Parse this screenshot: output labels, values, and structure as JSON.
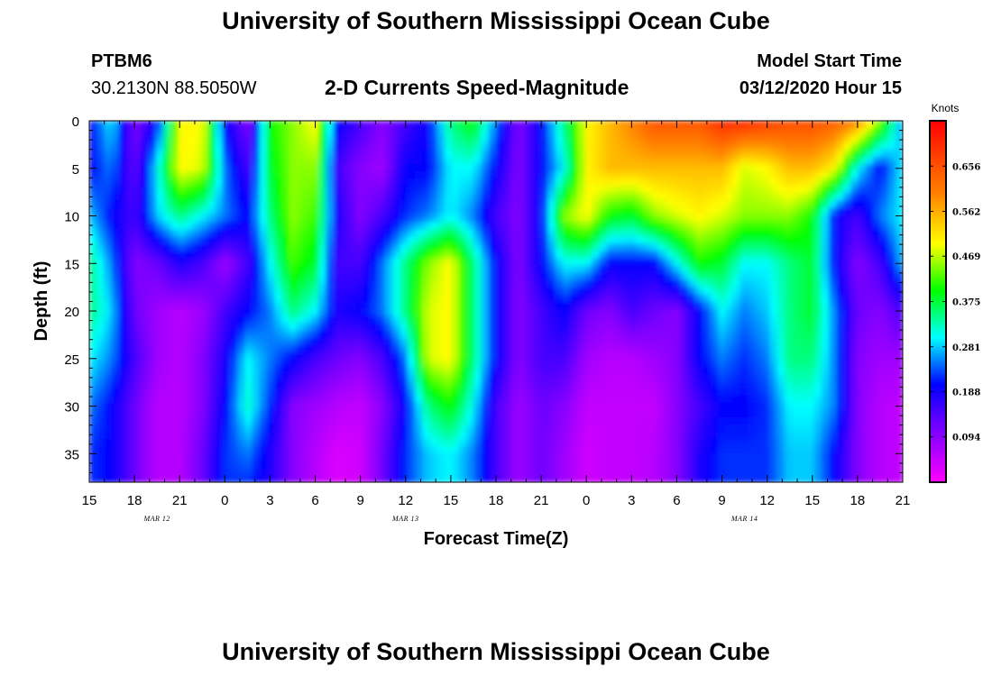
{
  "header": {
    "title": "University of Southern Mississippi Ocean Cube",
    "station": "PTBM6",
    "coords": "30.2130N 88.5050W",
    "plot_title": "2-D Currents Speed-Magnitude",
    "model_start_label": "Model Start Time",
    "model_start_value": "03/12/2020 Hour 15"
  },
  "footer": {
    "title": "University of Southern Mississippi Ocean Cube"
  },
  "chart_data": {
    "type": "heatmap",
    "title": "2-D Currents Speed-Magnitude",
    "xlabel": "Forecast Time(Z)",
    "ylabel": "Depth (ft)",
    "x_ticks": [
      "15",
      "18",
      "21",
      "0",
      "3",
      "6",
      "9",
      "12",
      "15",
      "18",
      "21",
      "0",
      "3",
      "6",
      "9",
      "12",
      "15",
      "18",
      "21"
    ],
    "x_range_hours": [
      0,
      54
    ],
    "date_labels": [
      {
        "text": "MAR 12",
        "hour": 4.5
      },
      {
        "text": "MAR 13",
        "hour": 21
      },
      {
        "text": "MAR 14",
        "hour": 43.5
      }
    ],
    "y_ticks": [
      0,
      5,
      10,
      15,
      20,
      25,
      30,
      35
    ],
    "ylim": [
      0,
      38
    ],
    "y_inverted": true,
    "colorbar": {
      "label": "Knots",
      "ticks": [
        "0.656",
        "0.562",
        "0.469",
        "0.375",
        "0.281",
        "0.188",
        "0.094"
      ],
      "range": [
        0,
        0.75
      ],
      "colors": [
        "#ff00ff",
        "#8000ff",
        "#0000ff",
        "#00ffff",
        "#00ff00",
        "#ffff00",
        "#ff8000",
        "#ff0000"
      ]
    },
    "x_hours": [
      0,
      1.5,
      3,
      4.5,
      6,
      7.5,
      9,
      10.5,
      12,
      13.5,
      15,
      16.5,
      18,
      19.5,
      21,
      22.5,
      24,
      25.5,
      27,
      28.5,
      30,
      31.5,
      33,
      34.5,
      36,
      37.5,
      39,
      40.5,
      42,
      43.5,
      45,
      46.5,
      48,
      49.5,
      51,
      52.5,
      54
    ],
    "depths_ft": [
      0,
      5,
      10,
      15,
      20,
      25,
      30,
      35,
      38
    ],
    "speed_knots": [
      [
        0.2,
        0.3,
        0.1,
        0.2,
        0.5,
        0.5,
        0.2,
        0.1,
        0.4,
        0.45,
        0.5,
        0.2,
        0.15,
        0.1,
        0.15,
        0.2,
        0.35,
        0.4,
        0.25,
        0.1,
        0.2,
        0.35,
        0.5,
        0.55,
        0.6,
        0.65,
        0.65,
        0.65,
        0.7,
        0.7,
        0.68,
        0.66,
        0.66,
        0.64,
        0.6,
        0.45,
        0.25
      ],
      [
        0.2,
        0.25,
        0.12,
        0.3,
        0.5,
        0.48,
        0.25,
        0.15,
        0.38,
        0.45,
        0.45,
        0.15,
        0.1,
        0.08,
        0.2,
        0.2,
        0.3,
        0.3,
        0.2,
        0.1,
        0.2,
        0.3,
        0.5,
        0.55,
        0.55,
        0.55,
        0.55,
        0.55,
        0.55,
        0.48,
        0.5,
        0.55,
        0.55,
        0.5,
        0.3,
        0.2,
        0.3
      ],
      [
        0.28,
        0.2,
        0.15,
        0.28,
        0.35,
        0.3,
        0.25,
        0.2,
        0.35,
        0.45,
        0.42,
        0.18,
        0.1,
        0.15,
        0.22,
        0.25,
        0.3,
        0.25,
        0.15,
        0.1,
        0.2,
        0.45,
        0.5,
        0.4,
        0.38,
        0.45,
        0.48,
        0.5,
        0.48,
        0.45,
        0.45,
        0.45,
        0.4,
        0.2,
        0.15,
        0.25,
        0.3
      ],
      [
        0.35,
        0.25,
        0.1,
        0.12,
        0.18,
        0.15,
        0.08,
        0.15,
        0.3,
        0.42,
        0.38,
        0.15,
        0.15,
        0.25,
        0.35,
        0.45,
        0.5,
        0.35,
        0.2,
        0.1,
        0.2,
        0.3,
        0.3,
        0.2,
        0.2,
        0.2,
        0.3,
        0.4,
        0.38,
        0.3,
        0.3,
        0.35,
        0.38,
        0.2,
        0.1,
        0.15,
        0.28
      ],
      [
        0.35,
        0.28,
        0.12,
        0.08,
        0.06,
        0.08,
        0.15,
        0.2,
        0.25,
        0.35,
        0.3,
        0.18,
        0.2,
        0.25,
        0.35,
        0.48,
        0.5,
        0.35,
        0.2,
        0.1,
        0.15,
        0.2,
        0.12,
        0.1,
        0.15,
        0.12,
        0.1,
        0.2,
        0.3,
        0.25,
        0.28,
        0.35,
        0.38,
        0.25,
        0.12,
        0.1,
        0.15
      ],
      [
        0.3,
        0.25,
        0.15,
        0.08,
        0.06,
        0.1,
        0.18,
        0.3,
        0.25,
        0.2,
        0.15,
        0.12,
        0.1,
        0.15,
        0.25,
        0.48,
        0.5,
        0.35,
        0.2,
        0.1,
        0.15,
        0.15,
        0.08,
        0.06,
        0.06,
        0.08,
        0.1,
        0.2,
        0.25,
        0.22,
        0.25,
        0.35,
        0.35,
        0.25,
        0.1,
        0.08,
        0.08
      ],
      [
        0.25,
        0.2,
        0.12,
        0.06,
        0.06,
        0.1,
        0.2,
        0.32,
        0.22,
        0.1,
        0.08,
        0.06,
        0.05,
        0.1,
        0.2,
        0.35,
        0.4,
        0.3,
        0.15,
        0.08,
        0.12,
        0.1,
        0.05,
        0.05,
        0.05,
        0.05,
        0.1,
        0.15,
        0.2,
        0.2,
        0.22,
        0.3,
        0.3,
        0.25,
        0.1,
        0.06,
        0.05
      ],
      [
        0.22,
        0.2,
        0.12,
        0.06,
        0.06,
        0.12,
        0.22,
        0.25,
        0.18,
        0.1,
        0.06,
        0.03,
        0.04,
        0.12,
        0.22,
        0.28,
        0.3,
        0.25,
        0.15,
        0.08,
        0.12,
        0.08,
        0.04,
        0.05,
        0.05,
        0.06,
        0.1,
        0.18,
        0.22,
        0.22,
        0.22,
        0.28,
        0.28,
        0.2,
        0.1,
        0.06,
        0.05
      ],
      [
        0.22,
        0.2,
        0.12,
        0.06,
        0.06,
        0.12,
        0.22,
        0.22,
        0.18,
        0.1,
        0.06,
        0.03,
        0.04,
        0.12,
        0.22,
        0.28,
        0.3,
        0.25,
        0.15,
        0.08,
        0.12,
        0.08,
        0.04,
        0.05,
        0.05,
        0.06,
        0.1,
        0.18,
        0.22,
        0.22,
        0.22,
        0.28,
        0.28,
        0.2,
        0.1,
        0.06,
        0.05
      ]
    ]
  }
}
